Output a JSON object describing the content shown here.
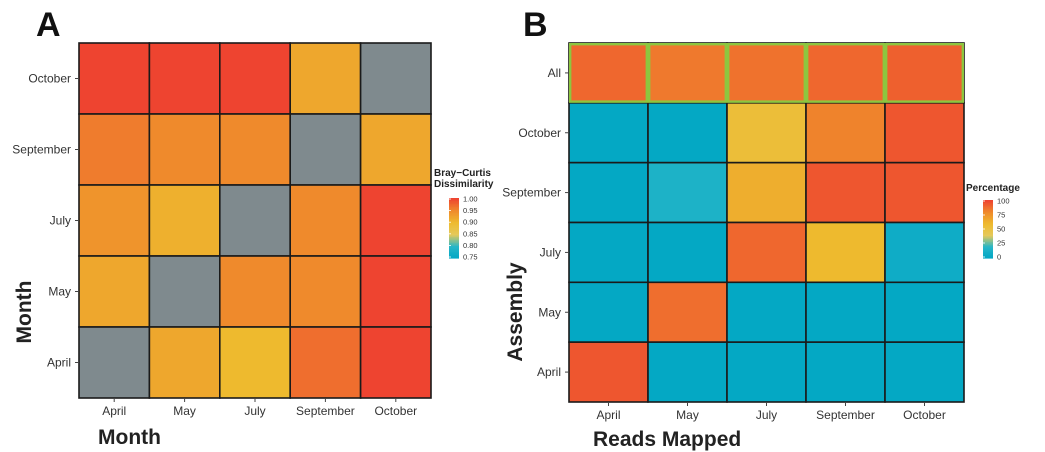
{
  "chart_data": [
    {
      "type": "heatmap",
      "panel": "A",
      "xlabel": "Month",
      "ylabel": "Month",
      "x_categories": [
        "April",
        "May",
        "July",
        "September",
        "October"
      ],
      "y_categories": [
        "October",
        "September",
        "July",
        "May",
        "April"
      ],
      "values": [
        [
          1.0,
          1.0,
          1.0,
          0.92,
          null
        ],
        [
          0.96,
          0.95,
          0.95,
          null,
          0.92
        ],
        [
          0.94,
          0.91,
          null,
          0.95,
          1.0
        ],
        [
          0.92,
          null,
          0.95,
          0.95,
          1.0
        ],
        [
          null,
          0.92,
          0.9,
          0.97,
          1.0
        ]
      ],
      "diagonal_color": "#7f8a8e",
      "legend": {
        "title_line1": "Bray−Curtis",
        "title_line2": "Dissimilarity",
        "ticks": [
          "1.00",
          "0.95",
          "0.90",
          "0.85",
          "0.80",
          "0.75"
        ],
        "range": [
          0.75,
          1.0
        ]
      },
      "colors": [
        "#00a6c4",
        "#26b6c8",
        "#e5c95a",
        "#eeba2e",
        "#ef8a2c",
        "#ee4430"
      ]
    },
    {
      "type": "heatmap",
      "panel": "B",
      "xlabel": "Reads Mapped",
      "ylabel": "Assembly",
      "x_categories": [
        "April",
        "May",
        "July",
        "September",
        "October"
      ],
      "y_categories": [
        "All",
        "October",
        "September",
        "July",
        "May",
        "April"
      ],
      "values": [
        [
          90,
          85,
          87,
          90,
          92
        ],
        [
          2,
          2,
          55,
          82,
          95
        ],
        [
          2,
          15,
          65,
          95,
          95
        ],
        [
          2,
          2,
          90,
          60,
          8
        ],
        [
          2,
          88,
          2,
          2,
          2
        ],
        [
          95,
          2,
          2,
          2,
          2
        ]
      ],
      "highlight_row": "All",
      "highlight_color": "#8dc63f",
      "legend": {
        "title": "Percentage",
        "ticks": [
          "100",
          "75",
          "50",
          "25",
          "0"
        ],
        "range": [
          0,
          100
        ]
      },
      "colors": [
        "#00a6c4",
        "#26b6c8",
        "#e5c95a",
        "#eeba2e",
        "#ef8a2c",
        "#ee4430"
      ]
    }
  ]
}
